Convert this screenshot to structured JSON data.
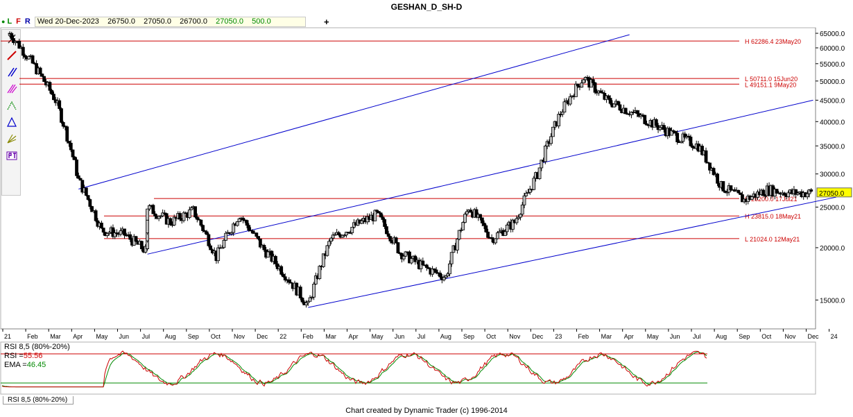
{
  "title": "GESHAN_D_SH-D",
  "toolbar_top": {
    "buttons": [
      "L",
      "F",
      "R"
    ],
    "date": "Wed 20-Dec-2023",
    "open": "26750.0",
    "high": "27050.0",
    "low": "26700.0",
    "close": "27050.0",
    "volume": "500.0",
    "add": "+"
  },
  "colors": {
    "candle": "#000000",
    "up_body": "#bdbdbd",
    "hline": "#cc0000",
    "channel": "#0000cc",
    "rsi": "#cc0000",
    "ema": "#008800",
    "ob": "#cc0000",
    "os": "#008800",
    "price_tag": "#ffff00"
  },
  "tool_icons": [
    "cursor-icon",
    "line-icon",
    "time-icon",
    "pitchfork-icon",
    "abc-icon",
    "ratio-icon",
    "gann-icon",
    "pt-icon"
  ],
  "chart_data": {
    "type": "candlestick",
    "series_close_approx": [
      {
        "x": "Jan 2021",
        "y": 65000
      },
      {
        "x": "Mar 2021",
        "y": 45000
      },
      {
        "x": "Apr 2021",
        "y": 29000
      },
      {
        "x": "May 2021",
        "y": 22000
      },
      {
        "x": "Jun 2021",
        "y": 21500
      },
      {
        "x": "Jul 2021",
        "y": 19500
      },
      {
        "x": "Jul 2021",
        "y": 25000
      },
      {
        "x": "Aug 2021",
        "y": 23000
      },
      {
        "x": "Sep 2021",
        "y": 24500
      },
      {
        "x": "Oct 2021",
        "y": 19000
      },
      {
        "x": "Nov 2021",
        "y": 24000
      },
      {
        "x": "Dec 2021",
        "y": 20000
      },
      {
        "x": "Feb 2022",
        "y": 14500
      },
      {
        "x": "Mar 2022",
        "y": 21000
      },
      {
        "x": "May 2022",
        "y": 24000
      },
      {
        "x": "Jun 2022",
        "y": 19500
      },
      {
        "x": "Jul 2022",
        "y": 18000
      },
      {
        "x": "Aug 2022",
        "y": 17000
      },
      {
        "x": "Sep 2022",
        "y": 25000
      },
      {
        "x": "Oct 2022",
        "y": 21000
      },
      {
        "x": "Nov 2022",
        "y": 23000
      },
      {
        "x": "Dec 2022",
        "y": 30000
      },
      {
        "x": "Jan 2023",
        "y": 42000
      },
      {
        "x": "Feb 2023",
        "y": 51000
      },
      {
        "x": "Mar 2023",
        "y": 45000
      },
      {
        "x": "Jun 2023",
        "y": 37000
      },
      {
        "x": "Jul 2023",
        "y": 35000
      },
      {
        "x": "Aug 2023",
        "y": 28000
      },
      {
        "x": "Sep 2023",
        "y": 26000
      },
      {
        "x": "Oct 2023",
        "y": 27500
      },
      {
        "x": "Nov 2023",
        "y": 27000
      },
      {
        "x": "Dec 2023",
        "y": 27050
      }
    ],
    "price_ticks": [
      "65000.0",
      "60000.0",
      "55000.0",
      "50000.0",
      "45000.0",
      "40000.0",
      "35000.0",
      "30000.0",
      "25000.0",
      "20000.0",
      "15000.0"
    ],
    "price_tick_values": [
      65000,
      60000,
      55000,
      50000,
      45000,
      40000,
      35000,
      30000,
      25000,
      20000,
      15000
    ],
    "yrange": [
      13500,
      66000
    ],
    "yscale": "log",
    "time_labels": [
      "21",
      "Feb",
      "Mar",
      "Apr",
      "May",
      "Jun",
      "Jul",
      "Aug",
      "Sep",
      "Oct",
      "Nov",
      "Dec",
      "22",
      "Feb",
      "Mar",
      "Apr",
      "May",
      "Jun",
      "Jul",
      "Aug",
      "Sep",
      "Oct",
      "Nov",
      "Dec",
      "23",
      "Feb",
      "Mar",
      "Apr",
      "May",
      "Jun",
      "Jul",
      "Aug",
      "Sep",
      "Oct",
      "Nov",
      "Dec",
      "24"
    ],
    "last_price": "27050.0",
    "hlines": [
      {
        "label": "H 62286.4 23May20",
        "value": 62286.4
      },
      {
        "label": "L 50711.0 15Jun20",
        "value": 50711.0
      },
      {
        "label": "L 49151.1 9May20",
        "value": 49151.1
      },
      {
        "label": "H 26200.0 17Jul21",
        "value": 26200.0
      },
      {
        "label": "H 23815.0 18May21",
        "value": 23815.0
      },
      {
        "label": "L 21024.0 12May21",
        "value": 21024.0
      }
    ],
    "channels": [
      {
        "from": {
          "x": "Apr 2021",
          "y": 27600
        },
        "to": {
          "x": "Apr 2023",
          "y": 64500
        }
      },
      {
        "from": {
          "x": "Jul 2021",
          "y": 19300
        },
        "to": {
          "x": "Dec 2023",
          "y": 45000
        }
      },
      {
        "from": {
          "x": "Feb 2022",
          "y": 14400
        },
        "to": {
          "x": "Jan 2024",
          "y": 26400
        }
      }
    ],
    "rsi": {
      "title": "RSI 8,5 (80%-20%)",
      "rsi_label": "RSI =",
      "rsi_value": "55.56",
      "ema_label": "EMA =",
      "ema_value": "46.45",
      "overbought": 80,
      "oversold": 20,
      "tab": "RSI 8,5 (80%-20%)"
    }
  },
  "footer": "Chart created by Dynamic Trader  (c) 1996-2014"
}
